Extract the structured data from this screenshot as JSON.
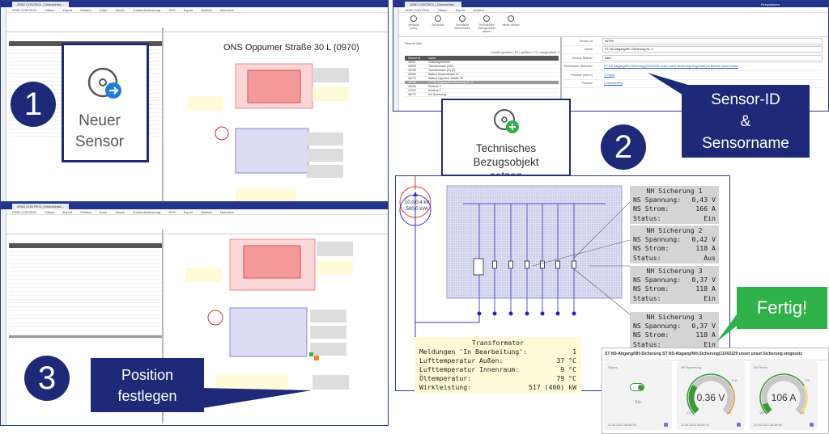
{
  "app": {
    "window_title": "GRID CONTROL | Übersichtsk...",
    "perspective": "Perspektiven"
  },
  "panel1": {
    "menu": [
      "GRID CONTROL",
      "Öffnen",
      "Export",
      "Weitere",
      "Karte",
      "Skizze",
      "Zustandserfassung",
      "ÖKS",
      "Export",
      "Weitere",
      "Netzwerk"
    ],
    "diagram_title": "ONS Oppumer Straße 30 L (0970)",
    "callout_label": "Neuer Sensor",
    "step": "1"
  },
  "panel2": {
    "menu": [
      "GRID CONTROL",
      "Öffnen",
      "Export",
      "Weitere"
    ],
    "ribbon": [
      "Sensorik (neu)",
      "Schließen",
      "Geometrie übernehmen",
      "Technisches Bezugsobjekt setzen",
      "Neuer Sensor"
    ],
    "report": "Report: Alle",
    "counts": "Anzahl geladen: 23 | gefiltert: 23 | ausgewählt: 1",
    "columns": [
      "Sensor Id",
      "Name"
    ],
    "rows": [
      {
        "id": "43011",
        "name": "Vollanlagenstrom"
      },
      {
        "id": "40539",
        "name": "Transformator (S10)"
      },
      {
        "id": "40795",
        "name": "Transformator (O) (2)"
      },
      {
        "id": "40530",
        "name": "Station Seidenstraße 22"
      },
      {
        "id": "46770",
        "name": "Station Oppumer Straße 30"
      },
      {
        "id": "46798",
        "name": "ST NS-Abgang/NH-Sicherung Nr. 4",
        "selected": true
      },
      {
        "id": "40006",
        "name": "Schiene 2"
      },
      {
        "id": "47010",
        "name": "Schiene 1"
      },
      {
        "id": "46772",
        "name": "NH Sicherung"
      }
    ],
    "form": [
      {
        "label": "Sensor Id",
        "value": "46798"
      },
      {
        "label": "Name",
        "value": "ST NS-Abgang/NH-Sicherung Nr. 4"
      },
      {
        "label": "Sensor Status*",
        "value": "Aktiv"
      },
      {
        "label": "Technische Referenz",
        "value": "ST NS-Abgang/NH-Sicherung(11002229 unset unset Sicherung eingesetzt) in Betrieb unset unset)"
      },
      {
        "label": "Position (intern)",
        "value": "1 Punkt"
      },
      {
        "label": "Position",
        "value": "0 Geometrien"
      }
    ],
    "callout_label": "Technisches Bezugsobjekt setzen",
    "step": "2",
    "banner": [
      "Sensor-ID",
      "&",
      "Sensorname"
    ]
  },
  "panel3": {
    "step": "3",
    "banner": [
      "Position",
      "festlegen"
    ]
  },
  "diagram": {
    "transformer_label": [
      "10,0/0,4 kV",
      "500,0 kVA"
    ],
    "fuses": [
      {
        "title": "NH Sicherung 1",
        "rows": [
          [
            "NS Spannung:",
            "0,43 V"
          ],
          [
            "NS Strom:",
            "166 A"
          ],
          [
            "Status:",
            "Ein"
          ]
        ]
      },
      {
        "title": "NH Sicherung 2",
        "rows": [
          [
            "NS Spannung:",
            "0,42 V"
          ],
          [
            "NS Strom:",
            "118 A"
          ],
          [
            "Status:",
            "Aus"
          ]
        ]
      },
      {
        "title": "NH Sicherung 3",
        "rows": [
          [
            "NS Spannung:",
            "0,37 V"
          ],
          [
            "NS Strom:",
            "118 A"
          ],
          [
            "Status:",
            "Ein"
          ]
        ]
      },
      {
        "title": "NH Sicherung 3",
        "rows": [
          [
            "NS Spannung:",
            "0,37 V"
          ],
          [
            "NS Strom:",
            "118 A"
          ],
          [
            "Status:",
            "Ein"
          ]
        ]
      }
    ],
    "transformator": {
      "title": "Transformator",
      "rows": [
        [
          "Meldungen 'In Bearbeitung':",
          "1"
        ],
        [
          "Lufttemperatur Außen:",
          "37 °C"
        ],
        [
          "Lufttemperatur Innenraum:",
          "9 °C"
        ],
        [
          "Öltemperatur:",
          "79 °C"
        ],
        [
          "Wirkleistung:",
          "517 (400) kW"
        ]
      ]
    }
  },
  "done_label": "Fertig!",
  "dashboard": {
    "title": "ST NS-Abgang/NH-Sicherung ST NS-Abgang/NH-Sicherung(11002229 unset unset Sicherung eingesetz",
    "cards": [
      {
        "label": "Status",
        "value": "Ein",
        "time": "11.09.2023 08:45:05"
      },
      {
        "label": "NS Spannung",
        "value": "0.36 V",
        "time": "11.09.2023 08:45:04",
        "fraction": 0.3,
        "min": "0.3",
        "max": "0.5",
        "warn": "0.44"
      },
      {
        "label": "NS Strom",
        "value": "106 A",
        "time": "11.09.2023 08:45:04",
        "fraction": 0.1,
        "min": "100",
        "max": "200",
        "warn": "175"
      }
    ],
    "colors": {
      "green": "#3a9a3a",
      "orange": "#f08a1c",
      "yellow": "#f2d53c",
      "gray": "#c8c8c8"
    }
  },
  "colors": {
    "brand": "#1e2a78",
    "accent_green": "#2fb24a"
  }
}
